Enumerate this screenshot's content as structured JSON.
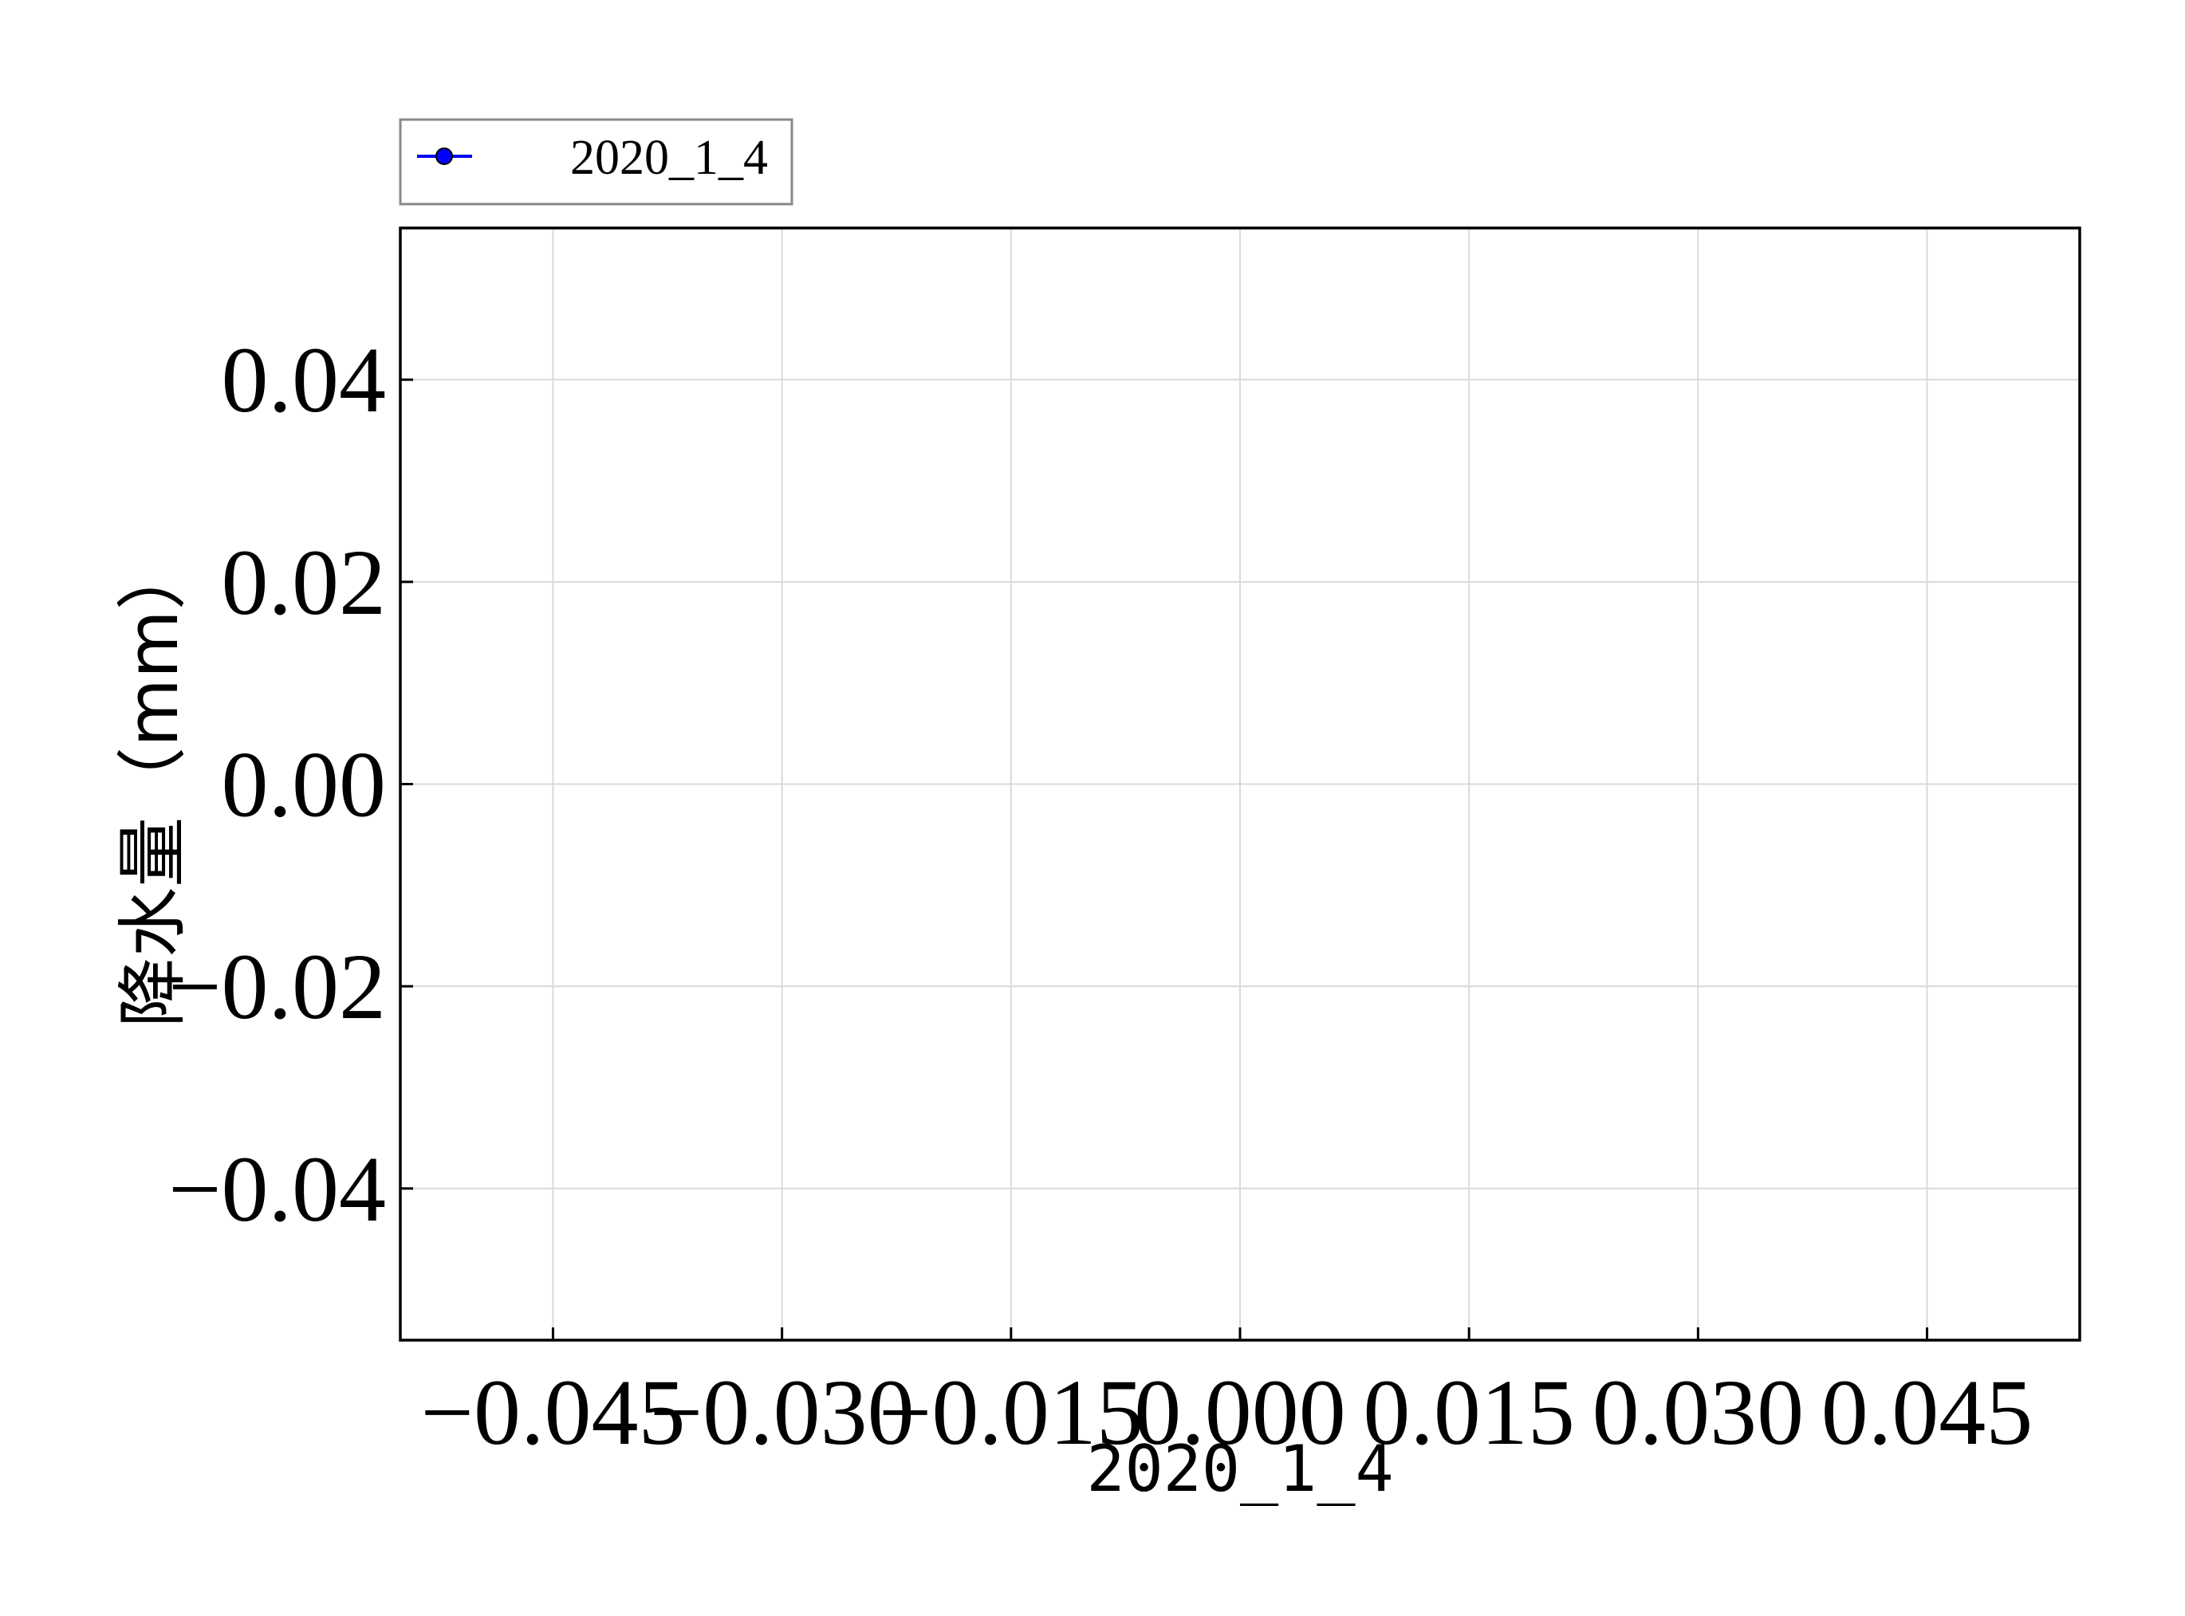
{
  "chart_data": {
    "type": "line",
    "title": "",
    "xlabel": "2020_1_4",
    "ylabel": "降水量（mm）",
    "xlim": [
      -0.055,
      0.055
    ],
    "ylim": [
      -0.055,
      0.055
    ],
    "x_ticks": [
      -0.045,
      -0.03,
      -0.015,
      0.0,
      0.015,
      0.03,
      0.045
    ],
    "x_tick_labels": [
      "−0.045",
      "−0.030",
      "−0.015",
      "0.000",
      "0.015",
      "0.030",
      "0.045"
    ],
    "y_ticks": [
      -0.04,
      -0.02,
      0.0,
      0.02,
      0.04
    ],
    "y_tick_labels": [
      "−0.04",
      "−0.02",
      "0.00",
      "0.02",
      "0.04"
    ],
    "grid": true,
    "legend_position": "top-left, above plot",
    "series": [
      {
        "name": "2020_1_4",
        "color": "#0000ff",
        "marker_color": "#0000ff",
        "x": [],
        "y": []
      }
    ]
  }
}
